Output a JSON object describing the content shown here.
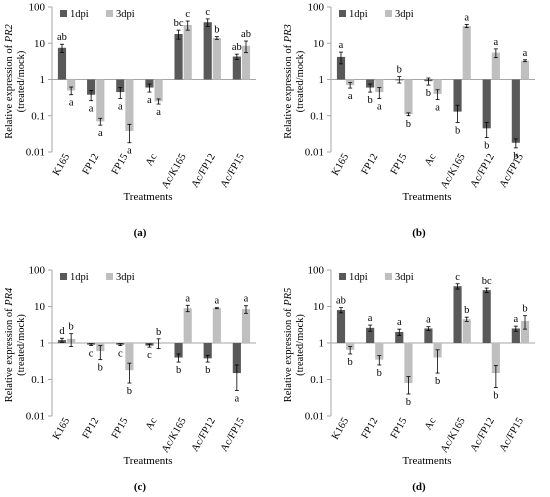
{
  "colors": {
    "d1": "#595959",
    "d3": "#bfbfbf",
    "axis": "#a6a6a6"
  },
  "chart_data": [
    {
      "type": "bar",
      "panel_label": "(a)",
      "ylabel": "Relative expression of PR2 (treated/mock)",
      "ylabel_prefix": "Relative expression of ",
      "ylabel_gene": "PR2",
      "ylabel_line2": "(treated/mock)",
      "xlabel": "Treatments",
      "scale": "log",
      "ylim": [
        0.01,
        100
      ],
      "yticks": [
        "0.01",
        "0.1",
        "1",
        "10",
        "100"
      ],
      "legend": [
        "1dpi",
        "3dpi"
      ],
      "categories": [
        "K165",
        "FP12",
        "FP15",
        "Ac",
        "Ac/K165",
        "Ac/FP12",
        "Ac/FP15"
      ],
      "series": [
        {
          "name": "1dpi",
          "values": [
            7.5,
            0.38,
            0.45,
            0.6,
            18,
            38,
            4.3
          ],
          "err": [
            1.9,
            0.12,
            0.15,
            0.15,
            5.0,
            9.0,
            0.7
          ],
          "letters": [
            "ab",
            "a",
            "a",
            "a",
            "bc",
            "c",
            "ab"
          ]
        },
        {
          "name": "3dpi",
          "values": [
            0.5,
            0.07,
            0.038,
            0.25,
            32,
            14,
            8.5
          ],
          "err": [
            0.12,
            0.015,
            0.02,
            0.04,
            9.0,
            1.2,
            3.0
          ],
          "letters": [
            "a",
            "a",
            "a",
            "a",
            "c",
            "b",
            "ab"
          ]
        }
      ]
    },
    {
      "type": "bar",
      "panel_label": "(b)",
      "ylabel": "Relative expression of PR3 (treated/mock)",
      "ylabel_prefix": "Relative expression of ",
      "ylabel_gene": "PR3",
      "ylabel_line2": "(treated/mock)",
      "xlabel": "Treatments",
      "scale": "log",
      "ylim": [
        0.01,
        100
      ],
      "yticks": [
        "0.01",
        "0.1",
        "1",
        "10",
        "100"
      ],
      "legend": [
        "1dpi",
        "3dpi"
      ],
      "categories": [
        "K165",
        "FP12",
        "FP15",
        "Ac",
        "Ac/K165",
        "Ac/FP12",
        "Ac/FP15"
      ],
      "series": [
        {
          "name": "1dpi",
          "values": [
            4.2,
            0.6,
            1.0,
            0.9,
            0.13,
            0.045,
            0.018
          ],
          "err": [
            1.5,
            0.15,
            0.2,
            0.2,
            0.065,
            0.02,
            0.005
          ],
          "letters": [
            "a",
            "b",
            "b",
            "b",
            "b",
            "b",
            "b"
          ]
        },
        {
          "name": "3dpi",
          "values": [
            0.7,
            0.45,
            0.11,
            0.4,
            30,
            5.5,
            3.3
          ],
          "err": [
            0.12,
            0.15,
            0.01,
            0.12,
            3.0,
            1.5,
            0.2
          ],
          "letters": [
            "a",
            "a",
            "b",
            "a",
            "a",
            "a",
            "a"
          ]
        }
      ]
    },
    {
      "type": "bar",
      "panel_label": "(c)",
      "ylabel": "Relative expression of PR4 (treated/mock)",
      "ylabel_prefix": "Relative expression of ",
      "ylabel_gene": "PR4",
      "ylabel_line2": "(treated/mock)",
      "xlabel": "Treatments",
      "scale": "log",
      "ylim": [
        0.01,
        100
      ],
      "yticks": [
        "0.01",
        "0.1",
        "1",
        "10",
        "100"
      ],
      "legend": [
        "1dpi",
        "3dpi"
      ],
      "categories": [
        "K165",
        "FP12",
        "FP15",
        "Ac",
        "Ac/K165",
        "Ac/FP12",
        "Ac/FP15"
      ],
      "series": [
        {
          "name": "1dpi",
          "values": [
            1.2,
            0.9,
            0.9,
            0.85,
            0.4,
            0.38,
            0.15
          ],
          "err": [
            0.15,
            0.05,
            0.05,
            0.08,
            0.1,
            0.08,
            0.1
          ],
          "letters": [
            "d",
            "c",
            "c",
            "c",
            "b",
            "b",
            "a"
          ]
        },
        {
          "name": "3dpi",
          "values": [
            1.3,
            0.6,
            0.18,
            1.0,
            9.0,
            9.0,
            8.5
          ],
          "err": [
            0.5,
            0.25,
            0.1,
            0.3,
            1.8,
            0.3,
            2.0
          ],
          "letters": [
            "b",
            "b",
            "b",
            "b",
            "a",
            "a",
            "a"
          ]
        }
      ]
    },
    {
      "type": "bar",
      "panel_label": "(d)",
      "ylabel": "Relative expression of PR5 (treated/mock)",
      "ylabel_prefix": "Relative expression of ",
      "ylabel_gene": "PR5",
      "ylabel_line2": "(treated/mock)",
      "xlabel": "Treatments",
      "scale": "log",
      "ylim": [
        0.01,
        100
      ],
      "yticks": [
        "0.01",
        "0.1",
        "1",
        "10",
        "100"
      ],
      "legend": [
        "1dpi",
        "3dpi"
      ],
      "categories": [
        "K165",
        "FP12",
        "FP15",
        "Ac",
        "Ac/K165",
        "Ac/FP12",
        "Ac/FP15"
      ],
      "series": [
        {
          "name": "1dpi",
          "values": [
            8.0,
            2.6,
            2.0,
            2.5,
            36,
            28,
            2.5
          ],
          "err": [
            1.3,
            0.5,
            0.4,
            0.3,
            6.0,
            4.0,
            0.4
          ],
          "letters": [
            "ab",
            "a",
            "a",
            "a",
            "c",
            "bc",
            "a"
          ]
        },
        {
          "name": "3dpi",
          "values": [
            0.65,
            0.35,
            0.08,
            0.4,
            4.5,
            0.15,
            4.0
          ],
          "err": [
            0.15,
            0.1,
            0.04,
            0.25,
            0.6,
            0.09,
            1.6
          ],
          "letters": [
            "b",
            "b",
            "b",
            "b",
            "b",
            "b",
            "b"
          ]
        }
      ]
    }
  ]
}
